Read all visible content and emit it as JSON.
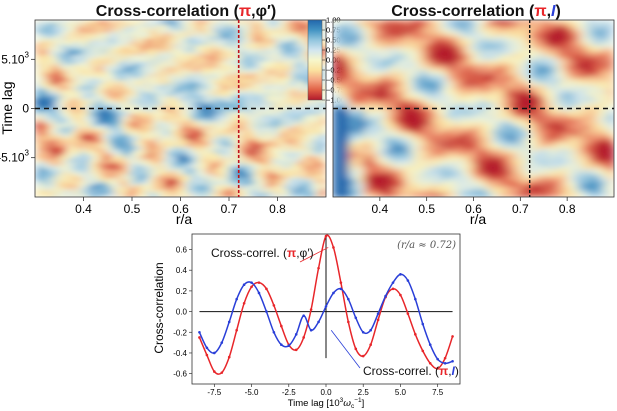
{
  "chart_data": [
    {
      "type": "heatmap",
      "title_prefix": "Cross-correlation (",
      "title_var1": "π",
      "title_sep": ",",
      "title_var2": "φ′",
      "title_suffix": ")",
      "xlabel": "r/a",
      "ylabel": "Time lag",
      "xlim": [
        0.3,
        0.9
      ],
      "ylim": [
        -9000,
        9000
      ],
      "xticks": [
        0.4,
        0.5,
        0.6,
        0.7,
        0.8
      ],
      "yticks": [
        {
          "value": 5000,
          "base": "5.10",
          "exp": "3"
        },
        {
          "value": 0,
          "base": "0",
          "exp": ""
        },
        {
          "value": -5000,
          "base": "-5.10",
          "exp": "3"
        }
      ],
      "marker_r": 0.72,
      "zero_line": 0,
      "colorbar_ticks": [
        "1.00",
        "0.75",
        "0.50",
        "0.25",
        "0.00",
        "−0.25",
        "−0.50",
        "−0.75",
        "−1.00"
      ],
      "vmin": -1,
      "vmax": 1,
      "colormap": [
        "#b2182b",
        "#e05f45",
        "#f4a582",
        "#fbe3a0",
        "#f7f7cc",
        "#d1e5f0",
        "#92c5de",
        "#4393c3",
        "#2166ac"
      ]
    },
    {
      "type": "heatmap",
      "title_prefix": "Cross-correlation (",
      "title_var1": "π",
      "title_sep": ",",
      "title_var2": "I",
      "title_suffix": ")",
      "xlabel": "r/a",
      "xlim": [
        0.3,
        0.9
      ],
      "ylim": [
        -9000,
        9000
      ],
      "xticks": [
        0.4,
        0.5,
        0.6,
        0.7,
        0.8
      ],
      "marker_r": 0.72,
      "zero_line": 0
    },
    {
      "type": "line",
      "xlabel_base": "Time lag  [10",
      "xlabel_exp": "3",
      "xlabel_unit": "ω",
      "xlabel_sub": "c",
      "xlabel_unit_exp": "−1",
      "xlabel_close": "]",
      "ylabel": "Cross-correlation",
      "xlim": [
        -9,
        9
      ],
      "ylim": [
        -0.7,
        0.75
      ],
      "xticks": [
        "-7.5",
        "-5.0",
        "-2.5",
        "0.0",
        "2.5",
        "5.0",
        "7.5"
      ],
      "yticks": [
        "0.6",
        "0.4",
        "0.2",
        "0.0",
        "-0.2",
        "-0.4",
        "-0.6"
      ],
      "annotation": "(r/a ≈ 0.72)",
      "series": [
        {
          "name": "Cross-correl. (π,φ′)",
          "label_prefix": "Cross-correl. (",
          "label_var1": "π",
          "label_sep": ",",
          "label_var2": "φ′",
          "label_suffix": ")",
          "color": "#e8262a",
          "x": [
            -8.5,
            -8.0,
            -7.5,
            -7.0,
            -6.5,
            -6.0,
            -5.5,
            -5.0,
            -4.5,
            -4.0,
            -3.5,
            -3.0,
            -2.5,
            -2.0,
            -1.5,
            -1.0,
            -0.5,
            0.0,
            0.5,
            1.0,
            1.5,
            2.0,
            2.5,
            3.0,
            3.5,
            4.0,
            4.5,
            5.0,
            5.5,
            6.0,
            6.5,
            7.0,
            7.5,
            8.0,
            8.5
          ],
          "values": [
            -0.25,
            -0.42,
            -0.58,
            -0.59,
            -0.44,
            -0.18,
            0.08,
            0.24,
            0.28,
            0.22,
            0.06,
            -0.14,
            -0.32,
            -0.37,
            -0.25,
            0.02,
            0.42,
            0.73,
            0.62,
            0.28,
            -0.1,
            -0.36,
            -0.43,
            -0.32,
            -0.08,
            0.14,
            0.22,
            0.16,
            -0.02,
            -0.22,
            -0.38,
            -0.5,
            -0.55,
            -0.45,
            -0.24
          ]
        },
        {
          "name": "Cross-correl. (π,I)",
          "label_prefix": "Cross-correl. (",
          "label_var1": "π",
          "label_sep": ",",
          "label_var2": "I",
          "label_suffix": ")",
          "color": "#2a3fd8",
          "x": [
            -8.5,
            -8.0,
            -7.5,
            -7.0,
            -6.5,
            -6.0,
            -5.5,
            -5.0,
            -4.5,
            -4.0,
            -3.5,
            -3.0,
            -2.5,
            -2.0,
            -1.5,
            -1.0,
            -0.5,
            0.0,
            0.5,
            1.0,
            1.5,
            2.0,
            2.5,
            3.0,
            3.5,
            4.0,
            4.5,
            5.0,
            5.5,
            6.0,
            6.5,
            7.0,
            7.5,
            8.0,
            8.5
          ],
          "values": [
            -0.2,
            -0.35,
            -0.4,
            -0.3,
            -0.1,
            0.12,
            0.26,
            0.28,
            0.18,
            0.0,
            -0.2,
            -0.32,
            -0.33,
            -0.22,
            -0.04,
            -0.18,
            -0.1,
            0.05,
            0.18,
            0.22,
            0.12,
            -0.06,
            -0.2,
            -0.18,
            -0.02,
            0.15,
            0.28,
            0.36,
            0.3,
            0.12,
            -0.12,
            -0.32,
            -0.46,
            -0.5,
            -0.48
          ]
        }
      ]
    }
  ]
}
